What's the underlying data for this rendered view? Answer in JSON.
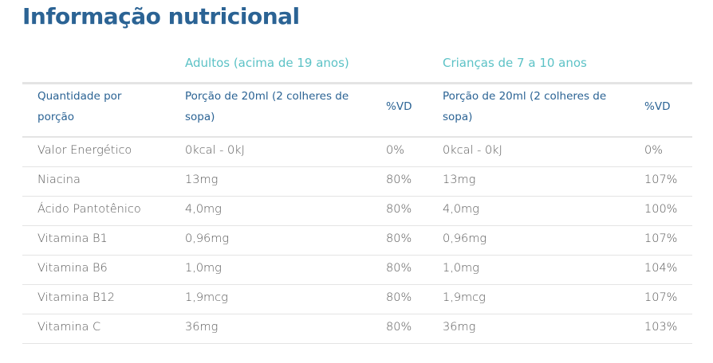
{
  "title": "Informação nutricional",
  "table": {
    "groups": [
      "Adultos (acima de 19 anos)",
      "Crianças de 7 a 10 anos"
    ],
    "header": [
      "Quantidade por porção",
      "Porção de 20ml (2 colheres de sopa)",
      "%VD",
      "Porção de 20ml (2 colheres de sopa)",
      "%VD"
    ],
    "rows": [
      [
        "Valor Energético",
        "0kcal - 0kJ",
        "0%",
        "0kcal - 0kJ",
        "0%"
      ],
      [
        "Niacina",
        "13mg",
        "80%",
        "13mg",
        "107%"
      ],
      [
        "Ácido Pantotênico",
        "4,0mg",
        "80%",
        "4,0mg",
        "100%"
      ],
      [
        "Vitamina B1",
        "0,96mg",
        "80%",
        "0,96mg",
        "107%"
      ],
      [
        "Vitamina B6",
        "1,0mg",
        "80%",
        "1,0mg",
        "104%"
      ],
      [
        "Vitamina B12",
        "1,9mcg",
        "80%",
        "1,9mcg",
        "107%"
      ],
      [
        "Vitamina C",
        "36mg",
        "80%",
        "36mg",
        "103%"
      ]
    ]
  }
}
